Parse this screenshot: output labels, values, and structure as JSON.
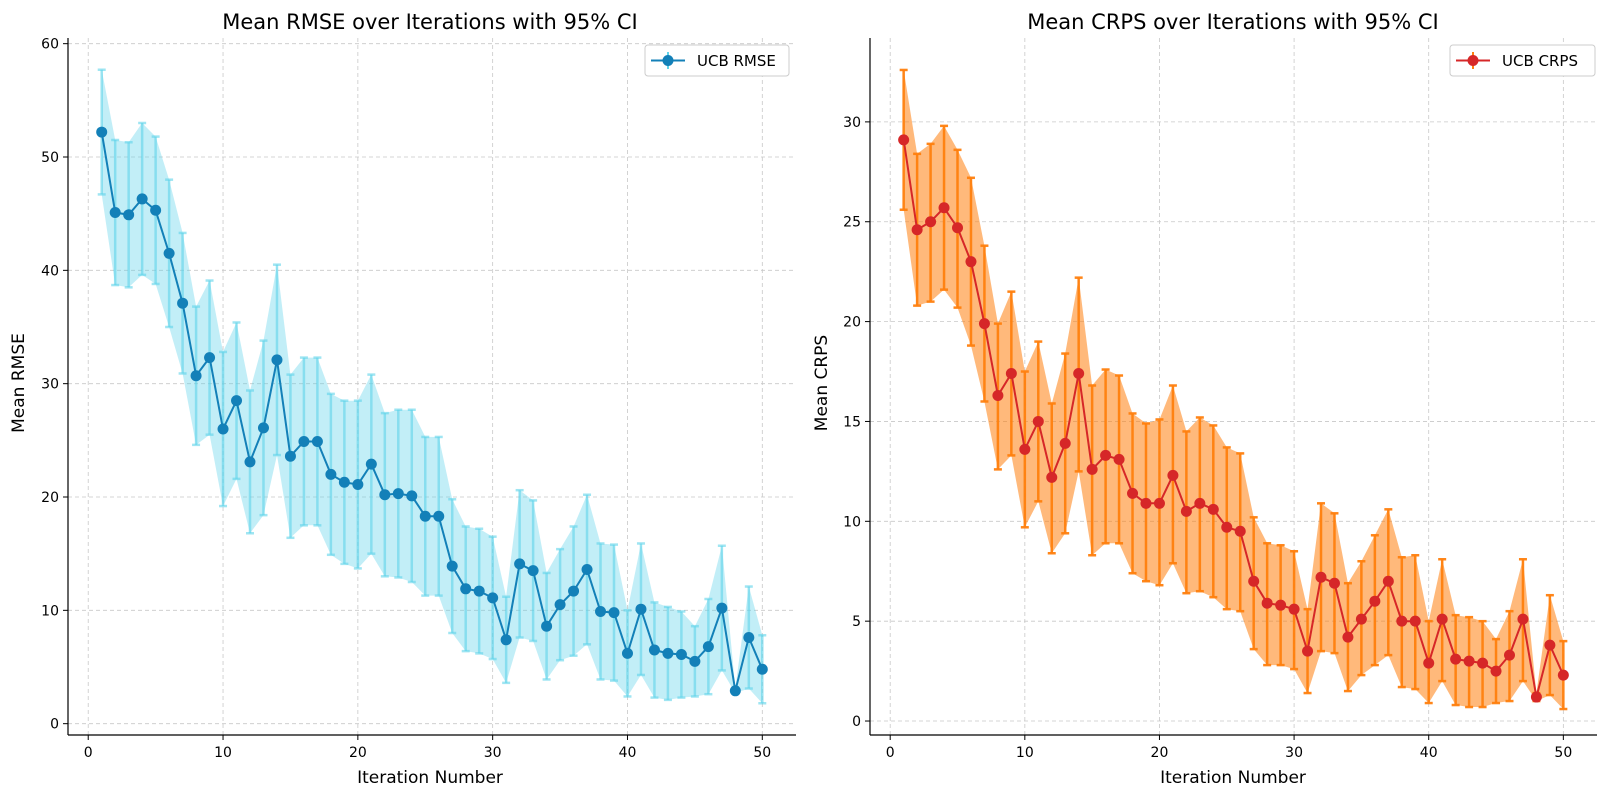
{
  "chart_data": [
    {
      "type": "line",
      "title": "Mean RMSE over Iterations with 95% CI",
      "xlabel": "Iteration Number",
      "ylabel": "Mean RMSE",
      "xlim": [
        -1.5,
        52.5
      ],
      "ylim": [
        -1,
        60.5
      ],
      "xticks": [
        0,
        10,
        20,
        30,
        40,
        50
      ],
      "yticks": [
        0,
        10,
        20,
        30,
        40,
        50,
        60
      ],
      "grid": true,
      "legend": "top-right",
      "series": [
        {
          "name": "UCB RMSE",
          "line_color": "#1380b8",
          "band_color": "#5fd3ea",
          "x": [
            1,
            2,
            3,
            4,
            5,
            6,
            7,
            8,
            9,
            10,
            11,
            12,
            13,
            14,
            15,
            16,
            17,
            18,
            19,
            20,
            21,
            22,
            23,
            24,
            25,
            26,
            27,
            28,
            29,
            30,
            31,
            32,
            33,
            34,
            35,
            36,
            37,
            38,
            39,
            40,
            41,
            42,
            43,
            44,
            45,
            46,
            47,
            48,
            49,
            50
          ],
          "values": [
            52.2,
            45.1,
            44.9,
            46.3,
            45.3,
            41.5,
            37.1,
            30.7,
            32.3,
            26.0,
            28.5,
            23.1,
            26.1,
            32.1,
            23.6,
            24.9,
            24.9,
            22.0,
            21.3,
            21.1,
            22.9,
            20.2,
            20.3,
            20.1,
            18.3,
            18.3,
            13.9,
            11.9,
            11.7,
            11.1,
            7.4,
            14.1,
            13.5,
            8.6,
            10.5,
            11.7,
            13.6,
            9.9,
            9.8,
            6.2,
            10.1,
            6.5,
            6.2,
            6.1,
            5.5,
            6.8,
            10.2,
            2.9,
            7.6,
            4.8
          ],
          "lower": [
            46.7,
            38.7,
            38.5,
            39.6,
            38.8,
            35.0,
            30.9,
            24.6,
            25.5,
            19.2,
            21.6,
            16.8,
            18.4,
            23.7,
            16.4,
            17.5,
            17.5,
            14.9,
            14.1,
            13.7,
            15.0,
            13.0,
            12.9,
            12.5,
            11.3,
            11.3,
            8.0,
            6.4,
            6.2,
            5.7,
            3.6,
            7.6,
            7.3,
            3.9,
            5.6,
            6.0,
            7.0,
            3.9,
            3.8,
            2.4,
            4.3,
            2.3,
            2.1,
            2.3,
            2.4,
            2.6,
            4.7,
            2.7,
            3.1,
            1.8
          ]
        }
      ]
    },
    {
      "type": "line",
      "title": "Mean CRPS over Iterations with 95% CI",
      "xlabel": "Iteration Number",
      "ylabel": "Mean CRPS",
      "xlim": [
        -1.5,
        52.5
      ],
      "ylim": [
        -0.7,
        34.2
      ],
      "xticks": [
        0,
        10,
        20,
        30,
        40,
        50
      ],
      "yticks": [
        0,
        5,
        10,
        15,
        20,
        25,
        30
      ],
      "grid": true,
      "legend": "top-right",
      "series": [
        {
          "name": "UCB CRPS",
          "line_color": "#d62728",
          "band_color": "#ff7f0e",
          "x": [
            1,
            2,
            3,
            4,
            5,
            6,
            7,
            8,
            9,
            10,
            11,
            12,
            13,
            14,
            15,
            16,
            17,
            18,
            19,
            20,
            21,
            22,
            23,
            24,
            25,
            26,
            27,
            28,
            29,
            30,
            31,
            32,
            33,
            34,
            35,
            36,
            37,
            38,
            39,
            40,
            41,
            42,
            43,
            44,
            45,
            46,
            47,
            48,
            49,
            50
          ],
          "values": [
            29.1,
            24.6,
            25.0,
            25.7,
            24.7,
            23.0,
            19.9,
            16.3,
            17.4,
            13.6,
            15.0,
            12.2,
            13.9,
            17.4,
            12.6,
            13.3,
            13.1,
            11.4,
            10.9,
            10.9,
            12.3,
            10.5,
            10.9,
            10.6,
            9.7,
            9.5,
            7.0,
            5.9,
            5.8,
            5.6,
            3.5,
            7.2,
            6.9,
            4.2,
            5.1,
            6.0,
            7.0,
            5.0,
            5.0,
            2.9,
            5.1,
            3.1,
            3.0,
            2.9,
            2.5,
            3.3,
            5.1,
            1.2,
            3.8,
            2.3
          ],
          "lower": [
            25.6,
            20.8,
            21.0,
            21.6,
            20.7,
            18.8,
            16.0,
            12.6,
            13.3,
            9.7,
            11.0,
            8.4,
            9.4,
            12.5,
            8.3,
            8.9,
            8.9,
            7.4,
            7.0,
            6.8,
            7.9,
            6.4,
            6.5,
            6.2,
            5.6,
            5.5,
            3.6,
            2.8,
            2.8,
            2.6,
            1.4,
            3.5,
            3.4,
            1.5,
            2.3,
            2.8,
            3.3,
            1.7,
            1.6,
            0.9,
            2.0,
            0.8,
            0.7,
            0.7,
            0.9,
            1.0,
            2.0,
            1.0,
            1.3,
            0.6
          ],
          "upper": [
            32.6,
            28.4,
            28.9,
            29.8,
            28.6,
            27.2,
            23.8,
            19.9,
            21.5,
            17.5,
            19.0,
            15.9,
            18.4,
            22.2,
            16.8,
            17.6,
            17.3,
            15.4,
            14.9,
            15.1,
            16.8,
            14.5,
            15.2,
            14.8,
            13.7,
            13.4,
            10.2,
            8.9,
            8.8,
            8.5,
            5.6,
            10.9,
            10.4,
            6.9,
            8.0,
            9.3,
            10.6,
            8.2,
            8.3,
            5.0,
            8.1,
            5.3,
            5.2,
            5.0,
            4.1,
            5.5,
            8.1,
            1.4,
            6.3,
            4.0
          ]
        }
      ]
    }
  ]
}
